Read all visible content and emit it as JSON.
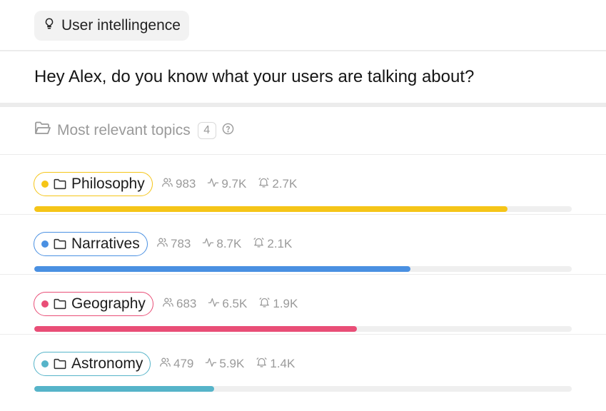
{
  "header": {
    "chip_label": "User intellingence",
    "chip_icon": "lightbulb-icon"
  },
  "greeting": "Hey Alex, do you know what your users are talking about?",
  "topics_header": {
    "label": "Most relevant topics",
    "count": "4",
    "help_icon": "question-circle-icon"
  },
  "topics": [
    {
      "name": "Philosophy",
      "color": "#f5c518",
      "users": "983",
      "activity": "9.7K",
      "alerts": "2.7K",
      "progress": 0.88
    },
    {
      "name": "Narratives",
      "color": "#4a90e2",
      "users": "783",
      "activity": "8.7K",
      "alerts": "2.1K",
      "progress": 0.7
    },
    {
      "name": "Geography",
      "color": "#e94e77",
      "users": "683",
      "activity": "6.5K",
      "alerts": "1.9K",
      "progress": 0.6
    },
    {
      "name": "Astronomy",
      "color": "#56b4c9",
      "users": "479",
      "activity": "5.9K",
      "alerts": "1.4K",
      "progress": 0.335
    }
  ]
}
